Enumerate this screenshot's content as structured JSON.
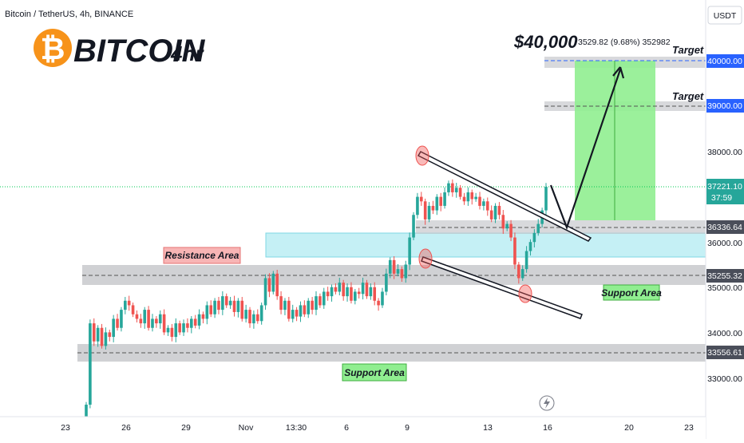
{
  "header": {
    "symbol_line": "Bitcoin / TetherUS, 4h, BINANCE",
    "brand": "BITCOIN",
    "brand_interval": "4hr"
  },
  "price_axis": {
    "currency": "USDT",
    "tick_labels": [
      "38000.00",
      "36000.00",
      "35000.00",
      "34000.00",
      "33000.00"
    ],
    "tags": {
      "target_high": "40000.00",
      "target_low": "39000.00",
      "current_price": "37221.10",
      "countdown": "37:59",
      "entry": "36336.64",
      "resistance": "35255.32",
      "support": "33556.61"
    }
  },
  "time_axis": {
    "labels": [
      "23",
      "26",
      "29",
      "Nov",
      "13:30",
      "6",
      "9",
      "13",
      "16",
      "20",
      "23"
    ]
  },
  "annotations": {
    "price_target": "$40,000",
    "measure_text": "3529.82 (9.68%) 352982",
    "target_1": "Target",
    "target_2": "Target",
    "resistance_area": "Resistance Area",
    "support_area_low": "Support Area",
    "support_area_right": "Support Area"
  },
  "colors": {
    "up": "#26a69a",
    "down": "#ef5350",
    "target_zone": "#90ee90",
    "resistance_zone": "#b2ebf2",
    "grey_zone": "#c8c9cd",
    "tag_blue": "#2962ff",
    "tag_dark": "#4a4e5a",
    "tag_green": "#26a69a",
    "current_line": "#00c853"
  },
  "chart_data": {
    "type": "candlestick",
    "title": "Bitcoin / TetherUS, 4h, BINANCE",
    "ylabel": "USDT",
    "ylim": [
      32200,
      41200
    ],
    "log_scale": false,
    "grid": false,
    "x_tick_labels": [
      "23",
      "26",
      "29",
      "Nov",
      "13:30",
      "6",
      "9",
      "13",
      "16",
      "20",
      "23"
    ],
    "close_series": [
      32400,
      34200,
      33800,
      34100,
      33700,
      34000,
      33900,
      34300,
      34100,
      34500,
      34700,
      34600,
      34400,
      34300,
      34200,
      34500,
      34100,
      34300,
      34200,
      34400,
      34000,
      34100,
      33900,
      34200,
      34000,
      34200,
      34100,
      34300,
      34150,
      34400,
      34300,
      34600,
      34400,
      34700,
      34500,
      34800,
      34600,
      34700,
      34450,
      34700,
      34300,
      34500,
      34200,
      34400,
      34250,
      34600,
      35200,
      34900,
      35300,
      34800,
      34500,
      34700,
      34300,
      34500,
      34350,
      34600,
      34400,
      34700,
      34500,
      34800,
      34600,
      34900,
      34800,
      35000,
      34900,
      35100,
      34800,
      35000,
      34700,
      34900,
      34850,
      35100,
      34800,
      35000,
      34700,
      34600,
      34900,
      35300,
      35600,
      35300,
      35400,
      35200,
      35500,
      36100,
      36600,
      37000,
      36900,
      36500,
      36800,
      36700,
      37000,
      36800,
      37100,
      37300,
      37100,
      37200,
      37000,
      36900,
      37100,
      36950,
      37000,
      36800,
      36900,
      36700,
      36500,
      36800,
      36600,
      36300,
      36400,
      36100,
      35500,
      35200,
      35400,
      35800,
      36000,
      36200,
      36400,
      36700,
      37221.1
    ],
    "levels": [
      {
        "label": "Target",
        "value": 40000
      },
      {
        "label": "Target",
        "value": 39000
      },
      {
        "value": 36336.64
      },
      {
        "value": 35255.32
      },
      {
        "value": 33556.61
      }
    ],
    "zones": [
      {
        "label": "Resistance Area",
        "from": 35300,
        "to": 35600
      },
      {
        "label": "Support Area",
        "from": 33350,
        "to": 33750
      },
      {
        "from": 35050,
        "to": 35420
      },
      {
        "from": 36336.64,
        "to": 40000
      }
    ],
    "annotations": [
      "$40,000",
      "3529.82 (9.68%) 352982",
      "Support Area"
    ]
  }
}
